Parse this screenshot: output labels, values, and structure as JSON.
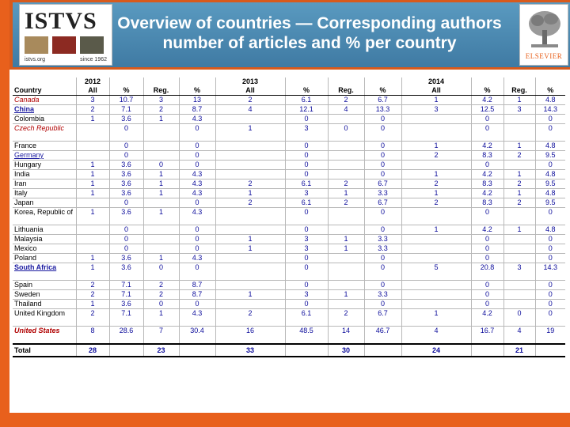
{
  "header": {
    "logo_left": {
      "title": "ISTVS",
      "url": "istvs.org",
      "since": "since 1962"
    },
    "title_line1": "Overview of countries — Corresponding authors",
    "title_line2": "number of articles and % per country",
    "logo_right": {
      "label": "ELSEVIER"
    }
  },
  "colors": {
    "orange": "#e8601c",
    "header_blue": "#4a86b0",
    "value_blue": "#0a0a9a",
    "red": "#b00000"
  },
  "table": {
    "years": [
      "2012",
      "2013",
      "2014"
    ],
    "columns": [
      "Country",
      "All",
      "%",
      "Reg.",
      "%",
      "All",
      "%",
      "Reg.",
      "%",
      "All",
      "%",
      "Reg.",
      "%"
    ],
    "rows": [
      {
        "country": "Canada",
        "cells": [
          "3",
          "10.7",
          "3",
          "13",
          "2",
          "6.1",
          "2",
          "6.7",
          "1",
          "4.2",
          "1",
          "4.8"
        ]
      },
      {
        "country": "China",
        "cells": [
          "2",
          "7.1",
          "2",
          "8.7",
          "4",
          "12.1",
          "4",
          "13.3",
          "3",
          "12.5",
          "3",
          "14.3"
        ]
      },
      {
        "country": "Colombia",
        "cells": [
          "1",
          "3.6",
          "1",
          "4.3",
          "",
          "0",
          "",
          "0",
          "",
          "0",
          "",
          "0"
        ]
      },
      {
        "country": "Czech Republic",
        "cells": [
          "",
          "0",
          "",
          "0",
          "1",
          "3",
          "0",
          "0",
          "",
          "0",
          "",
          "0"
        ]
      },
      {
        "country": "France",
        "cells": [
          "",
          "0",
          "",
          "0",
          "",
          "0",
          "",
          "0",
          "1",
          "4.2",
          "1",
          "4.8"
        ]
      },
      {
        "country": "Germany",
        "cells": [
          "",
          "0",
          "",
          "0",
          "",
          "0",
          "",
          "0",
          "2",
          "8.3",
          "2",
          "9.5"
        ]
      },
      {
        "country": "Hungary",
        "cells": [
          "1",
          "3.6",
          "0",
          "0",
          "",
          "0",
          "",
          "0",
          "",
          "0",
          "",
          "0"
        ]
      },
      {
        "country": "India",
        "cells": [
          "1",
          "3.6",
          "1",
          "4.3",
          "",
          "0",
          "",
          "0",
          "1",
          "4.2",
          "1",
          "4.8"
        ]
      },
      {
        "country": "Iran",
        "cells": [
          "1",
          "3.6",
          "1",
          "4.3",
          "2",
          "6.1",
          "2",
          "6.7",
          "2",
          "8.3",
          "2",
          "9.5"
        ]
      },
      {
        "country": "Italy",
        "cells": [
          "1",
          "3.6",
          "1",
          "4.3",
          "1",
          "3",
          "1",
          "3.3",
          "1",
          "4.2",
          "1",
          "4.8"
        ]
      },
      {
        "country": "Japan",
        "cells": [
          "",
          "0",
          "",
          "0",
          "2",
          "6.1",
          "2",
          "6.7",
          "2",
          "8.3",
          "2",
          "9.5"
        ]
      },
      {
        "country": "Korea, Republic of",
        "cells": [
          "1",
          "3.6",
          "1",
          "4.3",
          "",
          "0",
          "",
          "0",
          "",
          "0",
          "",
          "0"
        ]
      },
      {
        "country": "Lithuania",
        "cells": [
          "",
          "0",
          "",
          "0",
          "",
          "0",
          "",
          "0",
          "1",
          "4.2",
          "1",
          "4.8"
        ]
      },
      {
        "country": "Malaysia",
        "cells": [
          "",
          "0",
          "",
          "0",
          "1",
          "3",
          "1",
          "3.3",
          "",
          "0",
          "",
          "0"
        ]
      },
      {
        "country": "Mexico",
        "cells": [
          "",
          "0",
          "",
          "0",
          "1",
          "3",
          "1",
          "3.3",
          "",
          "0",
          "",
          "0"
        ]
      },
      {
        "country": "Poland",
        "cells": [
          "1",
          "3.6",
          "1",
          "4.3",
          "",
          "0",
          "",
          "0",
          "",
          "0",
          "",
          "0"
        ]
      },
      {
        "country": "South Africa",
        "cells": [
          "1",
          "3.6",
          "0",
          "0",
          "",
          "0",
          "",
          "0",
          "5",
          "20.8",
          "3",
          "14.3"
        ]
      },
      {
        "country": "Spain",
        "cells": [
          "2",
          "7.1",
          "2",
          "8.7",
          "",
          "0",
          "",
          "0",
          "",
          "0",
          "",
          "0"
        ]
      },
      {
        "country": "Sweden",
        "cells": [
          "2",
          "7.1",
          "2",
          "8.7",
          "1",
          "3",
          "1",
          "3.3",
          "",
          "0",
          "",
          "0"
        ]
      },
      {
        "country": "Thailand",
        "cells": [
          "1",
          "3.6",
          "0",
          "0",
          "",
          "0",
          "",
          "0",
          "",
          "0",
          "",
          "0"
        ]
      },
      {
        "country": "United Kingdom",
        "cells": [
          "2",
          "7.1",
          "1",
          "4.3",
          "2",
          "6.1",
          "2",
          "6.7",
          "1",
          "4.2",
          "0",
          "0"
        ]
      },
      {
        "country": "United States",
        "cells": [
          "8",
          "28.6",
          "7",
          "30.4",
          "16",
          "48.5",
          "14",
          "46.7",
          "4",
          "16.7",
          "4",
          "19"
        ]
      }
    ],
    "total": {
      "label": "Total",
      "cells": [
        "28",
        "",
        "23",
        "",
        "33",
        "",
        "30",
        "",
        "24",
        "",
        "21",
        ""
      ]
    }
  }
}
